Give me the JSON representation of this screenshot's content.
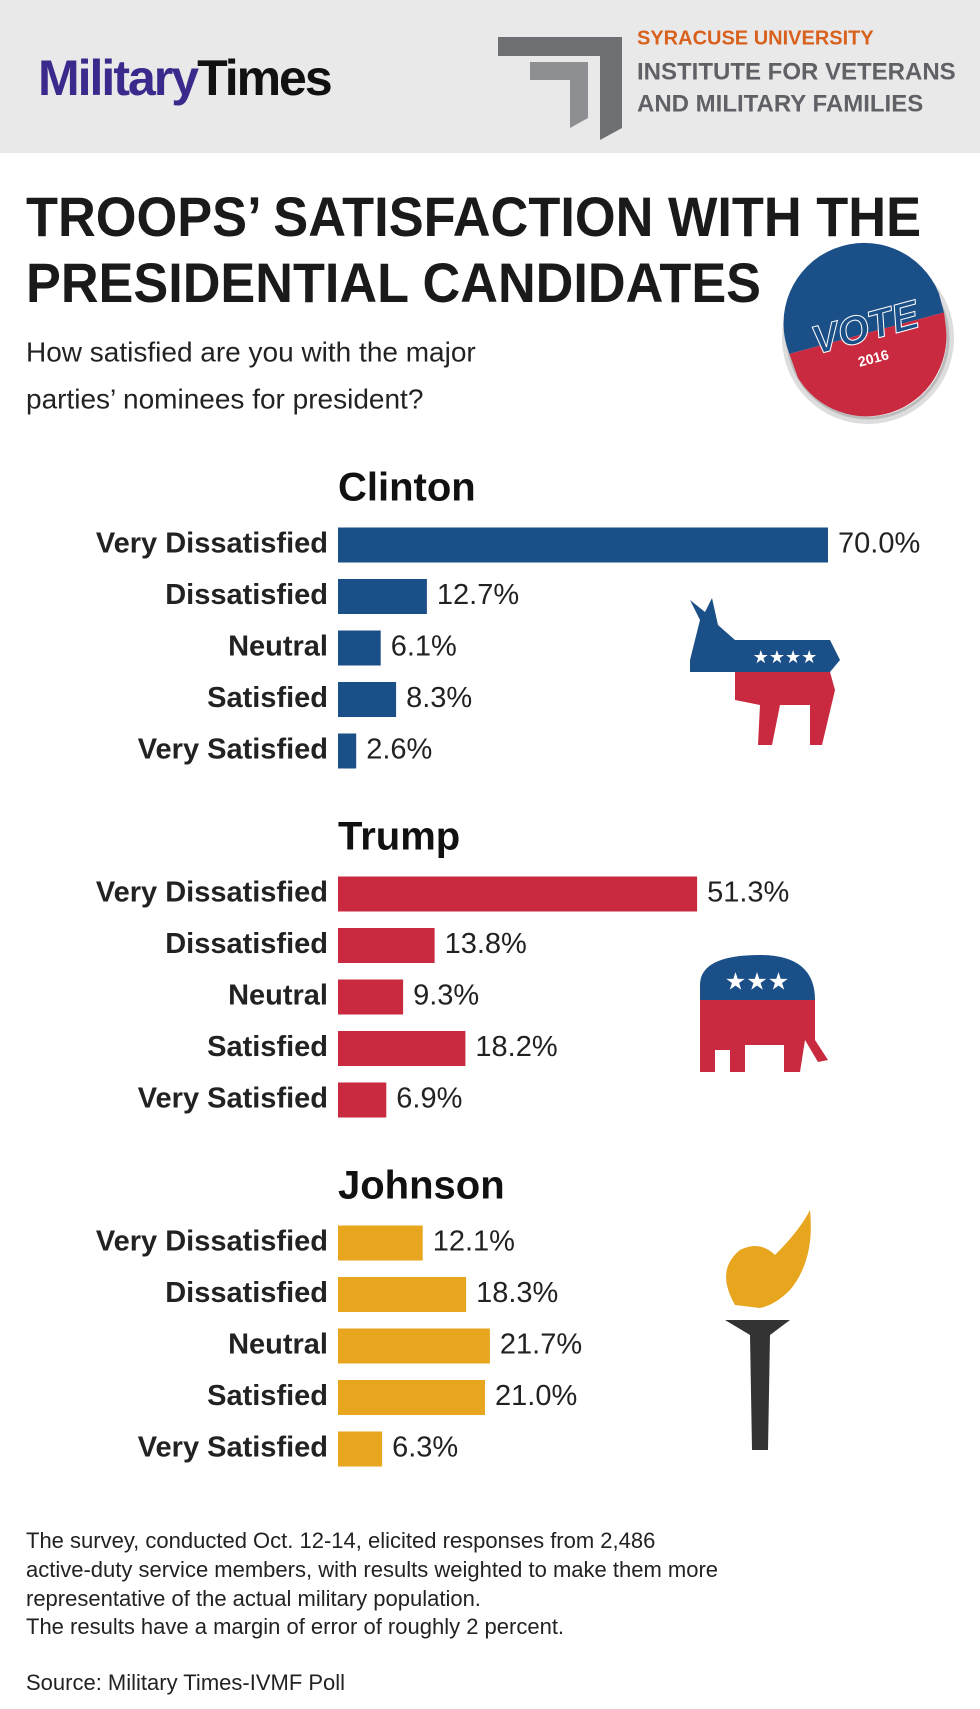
{
  "header": {
    "logo": {
      "part1": "Military",
      "part2": "Times"
    },
    "partner": [
      "SYRACUSE UNIVERSITY",
      "INSTITUTE FOR VETERANS",
      "AND MILITARY FAMILIES"
    ]
  },
  "title": [
    "TROOPS’ SATISFACTION WITH THE",
    "PRESIDENTIAL CANDIDATES"
  ],
  "subtitle": [
    "How satisfied are you with the major",
    "parties’ nominees for president?"
  ],
  "badge": {
    "text": "VOTE",
    "year": "2016"
  },
  "chart_data": [
    {
      "type": "bar",
      "orientation": "horizontal",
      "title": "Clinton",
      "color": "#1b4f87",
      "categories": [
        "Very Dissatisfied",
        "Dissatisfied",
        "Neutral",
        "Satisfied",
        "Very Satisfied"
      ],
      "values": [
        70.0,
        12.7,
        6.1,
        8.3,
        2.6
      ],
      "value_labels": [
        "70.0%",
        "12.7%",
        "6.1%",
        "8.3%",
        "2.6%"
      ]
    },
    {
      "type": "bar",
      "orientation": "horizontal",
      "title": "Trump",
      "color": "#c92a3f",
      "categories": [
        "Very Dissatisfied",
        "Dissatisfied",
        "Neutral",
        "Satisfied",
        "Very Satisfied"
      ],
      "values": [
        51.3,
        13.8,
        9.3,
        18.2,
        6.9
      ],
      "value_labels": [
        "51.3%",
        "13.8%",
        "9.3%",
        "18.2%",
        "6.9%"
      ]
    },
    {
      "type": "bar",
      "orientation": "horizontal",
      "title": "Johnson",
      "color": "#e8a51e",
      "categories": [
        "Very Dissatisfied",
        "Dissatisfied",
        "Neutral",
        "Satisfied",
        "Very Satisfied"
      ],
      "values": [
        12.1,
        18.3,
        21.7,
        21.0,
        6.3
      ],
      "value_labels": [
        "12.1%",
        "18.3%",
        "21.7%",
        "21.0%",
        "6.3%"
      ]
    }
  ],
  "footnote": [
    "The survey, conducted Oct. 12-14, elicited responses from 2,486",
    "active-duty service members, with results weighted to make them more",
    "representative of the actual military population.",
    "The results have a margin of error of roughly 2 percent."
  ],
  "source": "Source: Military Times-IVMF Poll"
}
